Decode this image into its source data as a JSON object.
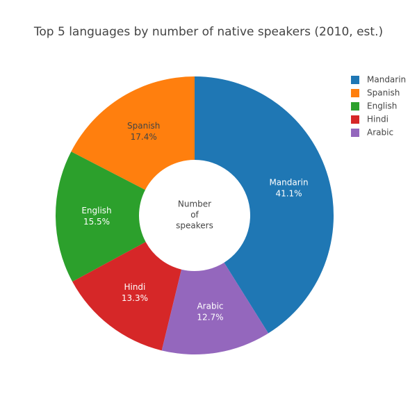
{
  "chart_data": {
    "type": "pie",
    "title": "Top 5 languages by number of native speakers (2010, est.)",
    "categories": [
      "Mandarin",
      "Spanish",
      "English",
      "Hindi",
      "Arabic"
    ],
    "values": [
      41.1,
      17.4,
      15.5,
      13.3,
      12.7
    ],
    "value_labels": [
      "41.1%",
      "17.4%",
      "15.5%",
      "13.3%",
      "12.7%"
    ],
    "colors": [
      "#1f77b4",
      "#ff7f0e",
      "#2ca02c",
      "#d62728",
      "#9467bd"
    ],
    "hole_label": [
      "Number",
      "of",
      "speakers"
    ],
    "legend": "top-right"
  }
}
